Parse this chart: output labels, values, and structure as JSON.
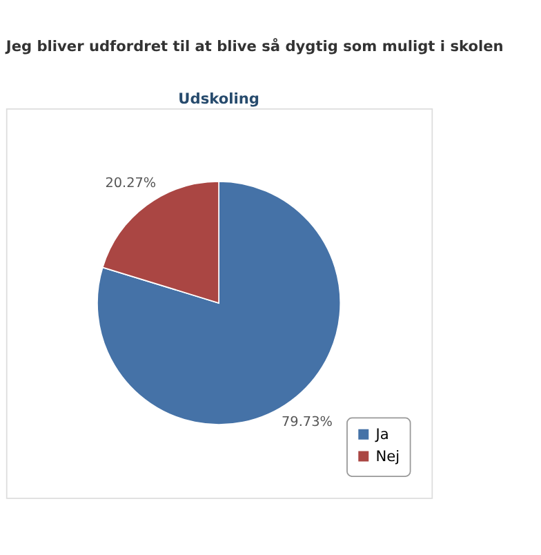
{
  "chart_data": {
    "type": "pie",
    "title": "Jeg bliver udfordret til at blive så dygtig som muligt i skolen",
    "subtitle": "Udskoling",
    "categories": [
      "Ja",
      "Nej"
    ],
    "values": [
      79.73,
      20.27
    ],
    "colors": [
      "#4572a7",
      "#aa4643"
    ],
    "value_labels": [
      "79.73%",
      "20.27%"
    ],
    "legend": "bottom right"
  }
}
